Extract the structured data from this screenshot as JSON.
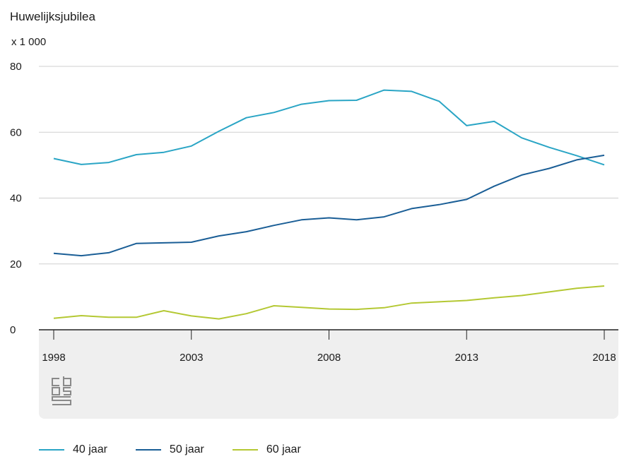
{
  "chart_data": {
    "type": "line",
    "title": "Huwelijksjubilea",
    "unit_label": "x 1 000",
    "x": [
      1998,
      1999,
      2000,
      2001,
      2002,
      2003,
      2004,
      2005,
      2006,
      2007,
      2008,
      2009,
      2010,
      2011,
      2012,
      2013,
      2014,
      2015,
      2016,
      2017,
      2018
    ],
    "x_ticks": [
      "1998",
      "2003",
      "2008",
      "2013",
      "2018"
    ],
    "y_ticks": [
      "0",
      "20",
      "40",
      "60",
      "80"
    ],
    "ylim": [
      0,
      80
    ],
    "grid": "horizontal",
    "legend_position": "bottom",
    "series": [
      {
        "name": "40 jaar",
        "color": "#2aa5c5",
        "values": [
          52.0,
          50.2,
          50.8,
          53.2,
          53.9,
          55.8,
          60.3,
          64.4,
          66.0,
          68.5,
          69.6,
          69.7,
          72.8,
          72.4,
          69.4,
          62.0,
          63.3,
          58.3,
          55.4,
          52.9,
          50.1
        ]
      },
      {
        "name": "50 jaar",
        "color": "#1a5e96",
        "values": [
          23.2,
          22.5,
          23.4,
          26.2,
          26.4,
          26.6,
          28.5,
          29.8,
          31.7,
          33.4,
          34.0,
          33.4,
          34.3,
          36.8,
          38.0,
          39.6,
          43.6,
          47.0,
          49.0,
          51.6,
          53.0
        ]
      },
      {
        "name": "60 jaar",
        "color": "#b4c833",
        "values": [
          3.5,
          4.3,
          3.8,
          3.8,
          5.8,
          4.2,
          3.3,
          4.9,
          7.3,
          6.8,
          6.3,
          6.2,
          6.7,
          8.1,
          8.5,
          8.9,
          9.7,
          10.4,
          11.5,
          12.6,
          13.3
        ]
      }
    ]
  },
  "legend": {
    "items": [
      {
        "label": "40 jaar",
        "color": "#2aa5c5"
      },
      {
        "label": "50 jaar",
        "color": "#1a5e96"
      },
      {
        "label": "60 jaar",
        "color": "#b4c833"
      }
    ]
  },
  "logo": {
    "icon": "cbs-logo-icon",
    "color": "#8a8a8a"
  }
}
